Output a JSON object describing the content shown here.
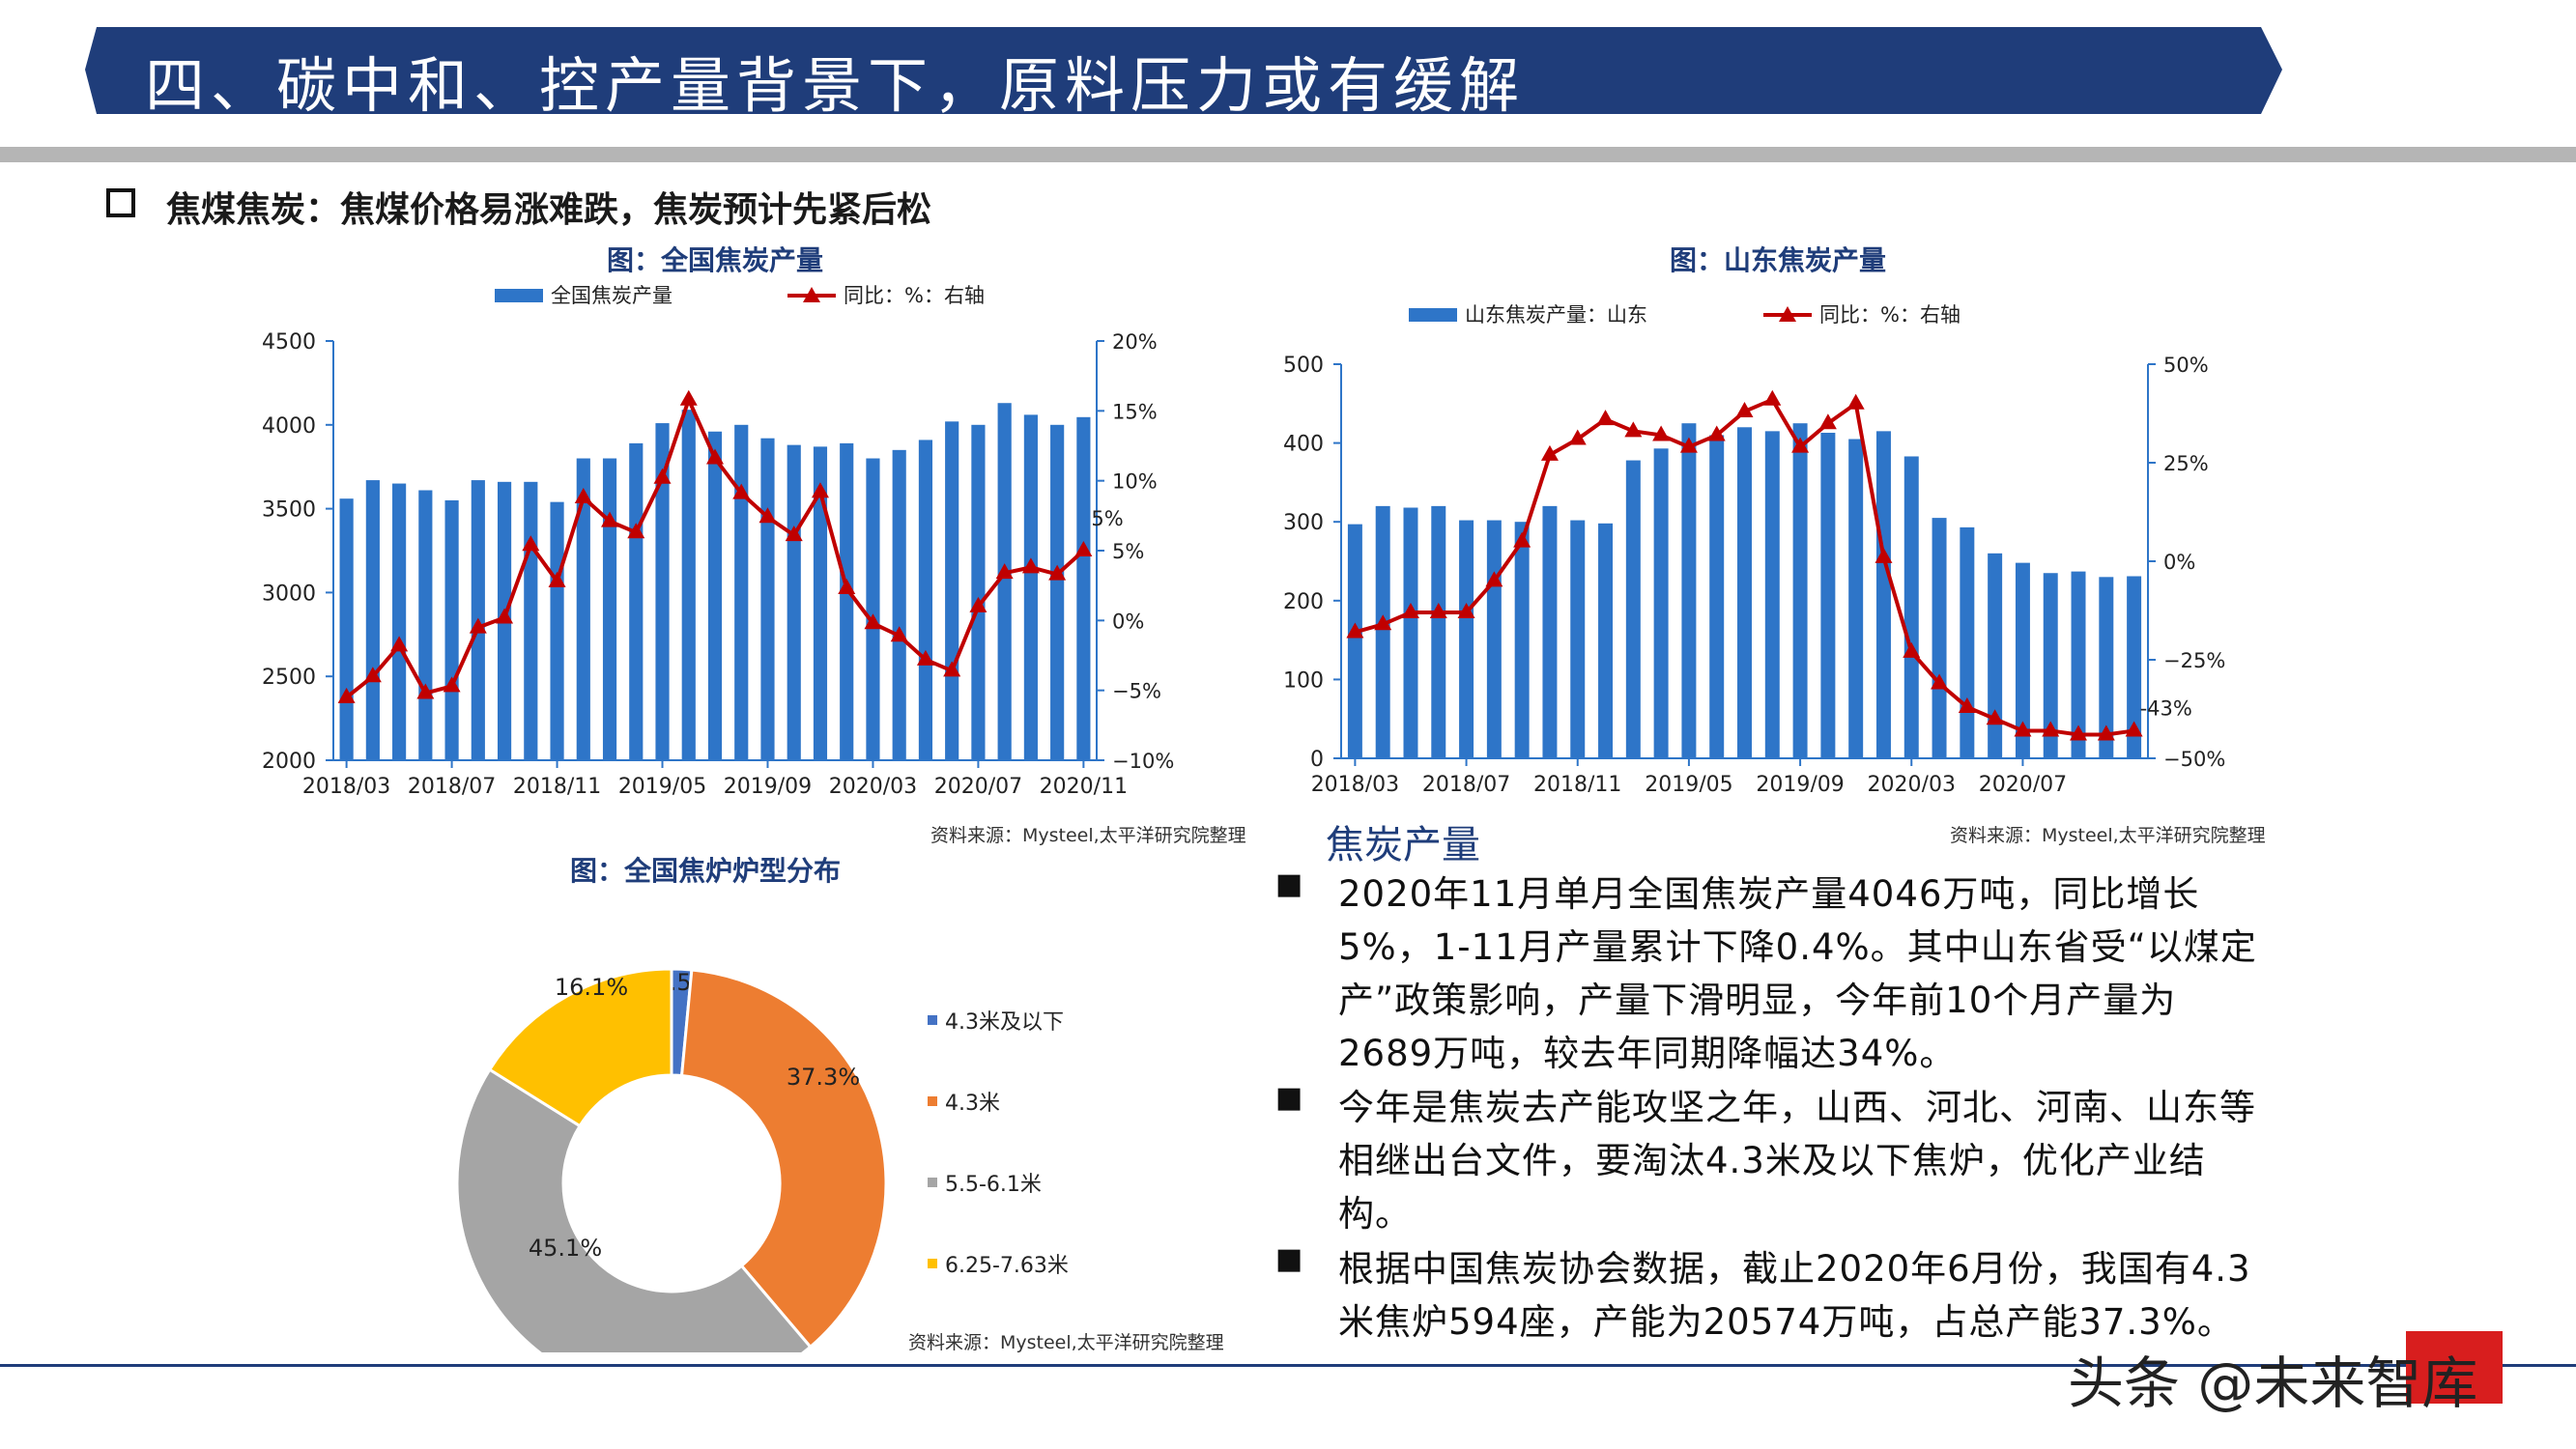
{
  "banner": {
    "title": "四、碳中和、控产量背景下，原料压力或有缓解"
  },
  "subheading": "焦煤焦炭：焦煤价格易涨难跌，焦炭预计先紧后松",
  "colors": {
    "navy": "#1f3d7a",
    "bar": "#2e75c8",
    "line": "#c00000",
    "pie": [
      "#4472c4",
      "#ed7d31",
      "#a5a5a5",
      "#ffc000"
    ]
  },
  "chart1": {
    "title": "图：全国焦炭产量",
    "source": "资料来源：Mysteel,太平洋研究院整理",
    "chart_data": {
      "type": "bar",
      "legend": [
        "全国焦炭产量",
        "同比：%：右轴"
      ],
      "yticks_left": [
        "4500",
        "4000",
        "3500",
        "3000",
        "2500",
        "2000"
      ],
      "yticks_right": [
        "20%",
        "15%",
        "10%",
        "5%",
        "0%",
        "−5%",
        "−10%"
      ],
      "ylim_left": [
        2000,
        4500
      ],
      "ylim_right": [
        -10,
        20
      ],
      "xticks": [
        "2018/03",
        "2018/07",
        "2018/11",
        "2019/05",
        "2019/09",
        "2020/03",
        "2020/07",
        "2020/11"
      ],
      "series": [
        {
          "name": "全国焦炭产量",
          "kind": "bar",
          "values": [
            3560,
            3670,
            3650,
            3610,
            3550,
            3670,
            3660,
            3660,
            3540,
            3800,
            3800,
            3890,
            4010,
            4090,
            3960,
            4000,
            3920,
            3880,
            3870,
            3890,
            3800,
            3850,
            3910,
            4020,
            4000,
            4130,
            4060,
            4000,
            4046
          ]
        },
        {
          "name": "同比：%：右轴",
          "kind": "line",
          "values": [
            -5.5,
            -4,
            -1.8,
            -5.2,
            -4.7,
            -0.5,
            0.2,
            5.4,
            2.8,
            8.8,
            7.1,
            6.3,
            10.2,
            15.8,
            11.6,
            9.1,
            7.4,
            6.1,
            9.2,
            2.3,
            -0.2,
            -1.1,
            -2.8,
            -3.6,
            1,
            3.4,
            3.8,
            3.3,
            5
          ]
        }
      ],
      "end_label": "5%"
    }
  },
  "chart2": {
    "title": "图：山东焦炭产量",
    "source": "资料来源：Mysteel,太平洋研究院整理",
    "chart_data": {
      "type": "bar",
      "legend": [
        "山东焦炭产量：山东",
        "同比：%：右轴"
      ],
      "yticks_left": [
        "500",
        "400",
        "300",
        "200",
        "100",
        "0"
      ],
      "yticks_right": [
        "50%",
        "25%",
        "0%",
        "−25%",
        "−50%"
      ],
      "ylim_left": [
        0,
        500
      ],
      "ylim_right": [
        -50,
        50
      ],
      "xticks": [
        "2018/03",
        "2018/07",
        "2018/11",
        "2019/05",
        "2019/09",
        "2020/03",
        "2020/07"
      ],
      "series": [
        {
          "name": "山东焦炭产量：山东",
          "kind": "bar",
          "values": [
            297,
            320,
            318,
            320,
            302,
            302,
            300,
            320,
            302,
            298,
            378,
            393,
            425,
            410,
            420,
            415,
            425,
            413,
            405,
            415,
            383,
            305,
            293,
            260,
            248,
            235,
            237,
            230,
            231
          ]
        },
        {
          "name": "同比：%：右轴",
          "kind": "line",
          "values": [
            -18,
            -16,
            -13,
            -13,
            -13,
            -5,
            5,
            27,
            31,
            36,
            33,
            32,
            29,
            32,
            38,
            41,
            29,
            35,
            40,
            1,
            -23,
            -31,
            -37,
            -40,
            -43,
            -43,
            -44,
            -44,
            -43
          ]
        }
      ],
      "end_label": "-43%"
    }
  },
  "chart3": {
    "title": "图：全国焦炉炉型分布",
    "source": "资料来源：Mysteel,太平洋研究院整理",
    "chart_data": {
      "type": "pie",
      "labels": [
        "4.3米及以下",
        "4.3米",
        "5.5-6.1米",
        "6.25-7.63米"
      ],
      "values": [
        1.5,
        37.3,
        45.1,
        16.1
      ],
      "value_labels": [
        "1.5%",
        "37.3%",
        "45.1%",
        "16.1%"
      ],
      "legend": "right"
    }
  },
  "text": {
    "heading": "焦炭产量",
    "bullet_symbol": "■",
    "p1": "2020年11月单月全国焦炭产量4046万吨，同比增长5%，1-11月产量累计下降0.4%。其中山东省受“以煤定产”政策影响，产量下滑明显，今年前10个月产量为2689万吨，较去年同期降幅达34%。",
    "p2": "今年是焦炭去产能攻坚之年，山西、河北、河南、山东等相继出台文件，要淘汰4.3米及以下焦炉，优化产业结构。",
    "p3": "根据中国焦炭协会数据，截止2020年6月份，我国有4.3米焦炉594座，产能为20574万吨，占总产能37.3%。"
  },
  "watermark": {
    "text": "头条 @未来智库"
  }
}
